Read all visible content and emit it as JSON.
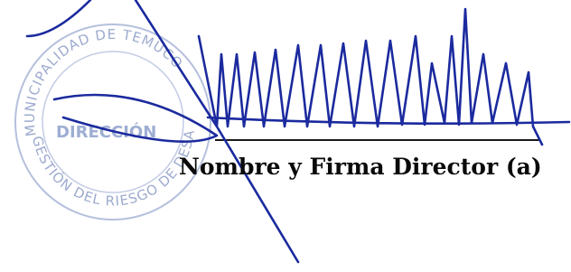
{
  "stamp": {
    "top_text": "MUNICIPALIDAD DE TEMUCO",
    "center_text": "DIRECCIÓN",
    "bottom_text": "GESTIÓN DEL RIESGO DE DESASTRES"
  },
  "signature_block": {
    "label": "Nombre y Firma Director (a)"
  }
}
